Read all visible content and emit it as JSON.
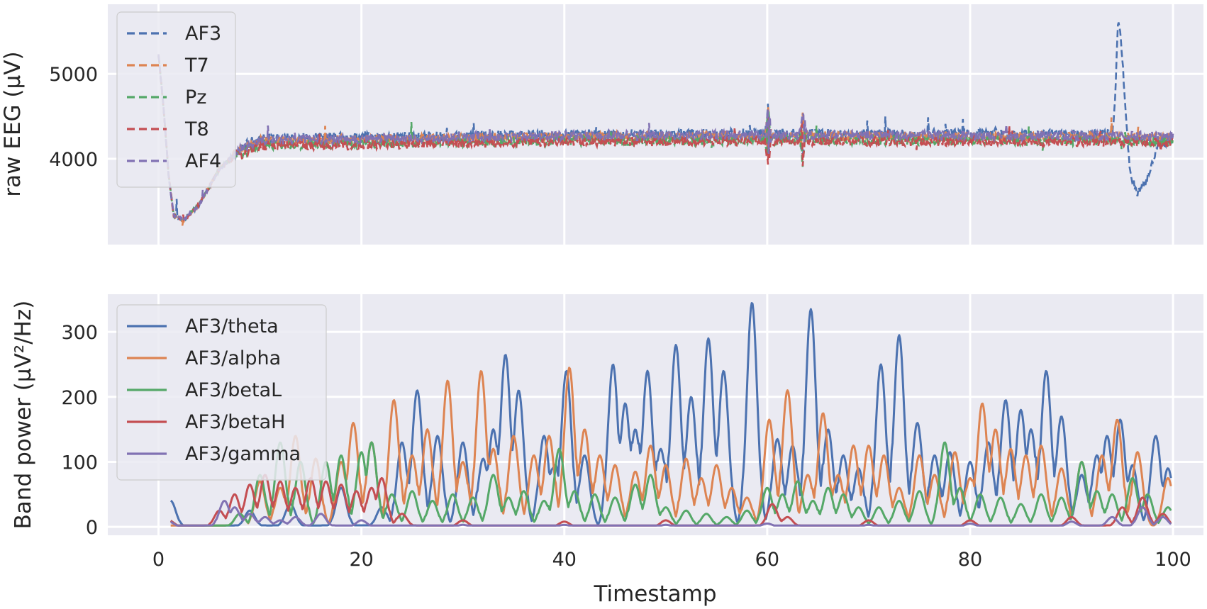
{
  "chart_data": [
    {
      "type": "line",
      "title": "",
      "xlabel": "",
      "ylabel": "raw EEG (µV)",
      "xlim": [
        -5,
        103
      ],
      "ylim": [
        2990,
        5820
      ],
      "x_ticks": [
        0,
        20,
        40,
        60,
        80,
        100
      ],
      "y_ticks": [
        4000,
        5000
      ],
      "y_tick_labels": [
        "4000",
        "5000"
      ],
      "grid": true,
      "line_style": "dashed",
      "legend_position": "top-left",
      "series": [
        {
          "name": "AF3",
          "color": "#4c72b0"
        },
        {
          "name": "T7",
          "color": "#dd8452"
        },
        {
          "name": "Pz",
          "color": "#55a868"
        },
        {
          "name": "T8",
          "color": "#c44e52"
        },
        {
          "name": "AF4",
          "color": "#8172b3"
        }
      ],
      "envelope_points": [
        {
          "x": 0,
          "y": 5220
        },
        {
          "x": 0.5,
          "y": 4600
        },
        {
          "x": 1,
          "y": 3800
        },
        {
          "x": 1.5,
          "y": 3330
        },
        {
          "x": 2.5,
          "y": 3280
        },
        {
          "x": 4,
          "y": 3460
        },
        {
          "x": 6,
          "y": 3880
        },
        {
          "x": 8,
          "y": 4100
        },
        {
          "x": 10,
          "y": 4200
        },
        {
          "x": 40,
          "y": 4250
        },
        {
          "x": 60,
          "y": 4260
        },
        {
          "x": 94,
          "y": 4250
        },
        {
          "x": 100,
          "y": 4240
        }
      ],
      "af3_event_points": [
        {
          "x": 94.0,
          "y": 4250
        },
        {
          "x": 94.3,
          "y": 4700
        },
        {
          "x": 94.6,
          "y": 5700
        },
        {
          "x": 95.0,
          "y": 5200
        },
        {
          "x": 95.4,
          "y": 4400
        },
        {
          "x": 95.8,
          "y": 3800
        },
        {
          "x": 96.5,
          "y": 3600
        },
        {
          "x": 97.3,
          "y": 3720
        },
        {
          "x": 98.0,
          "y": 3950
        },
        {
          "x": 98.5,
          "y": 4150
        },
        {
          "x": 100,
          "y": 4230
        }
      ]
    },
    {
      "type": "line",
      "title": "",
      "xlabel": "Timestamp",
      "ylabel": "Band power (µV²/Hz)",
      "xlim": [
        -5,
        103
      ],
      "ylim": [
        -13,
        358
      ],
      "x_ticks": [
        0,
        20,
        40,
        60,
        80,
        100
      ],
      "x_tick_labels": [
        "0",
        "20",
        "40",
        "60",
        "80",
        "100"
      ],
      "y_ticks": [
        0,
        100,
        200,
        300
      ],
      "y_tick_labels": [
        "0",
        "100",
        "200",
        "300"
      ],
      "grid": true,
      "line_style": "solid",
      "legend_position": "top-left",
      "series": [
        {
          "name": "AF3/theta",
          "color": "#4c72b0",
          "peaks": [
            [
              1.2,
              40
            ],
            [
              9,
              25
            ],
            [
              13,
              35
            ],
            [
              18,
              60
            ],
            [
              22,
              30
            ],
            [
              24,
              130
            ],
            [
              25.5,
              210
            ],
            [
              27.5,
              140
            ],
            [
              30,
              130
            ],
            [
              32,
              105
            ],
            [
              33,
              150
            ],
            [
              34.2,
              265
            ],
            [
              35.5,
              210
            ],
            [
              38,
              140
            ],
            [
              39,
              90
            ],
            [
              40.2,
              240
            ],
            [
              42,
              110
            ],
            [
              44.8,
              250
            ],
            [
              46,
              190
            ],
            [
              47,
              150
            ],
            [
              48.2,
              240
            ],
            [
              49.5,
              120
            ],
            [
              51,
              280
            ],
            [
              52.5,
              200
            ],
            [
              54.2,
              290
            ],
            [
              55.7,
              240
            ],
            [
              58.5,
              345
            ],
            [
              61,
              135
            ],
            [
              62.5,
              125
            ],
            [
              64.3,
              335
            ],
            [
              66,
              150
            ],
            [
              67.5,
              110
            ],
            [
              69,
              90
            ],
            [
              71.2,
              250
            ],
            [
              73,
              295
            ],
            [
              74.8,
              160
            ],
            [
              76.5,
              110
            ],
            [
              78,
              115
            ],
            [
              80,
              100
            ],
            [
              81.8,
              130
            ],
            [
              83.5,
              195
            ],
            [
              85,
              180
            ],
            [
              86,
              150
            ],
            [
              87.5,
              240
            ],
            [
              89,
              170
            ],
            [
              91,
              80
            ],
            [
              92.5,
              110
            ],
            [
              93.5,
              140
            ],
            [
              94.8,
              165
            ],
            [
              96,
              95
            ],
            [
              98.3,
              140
            ],
            [
              99.5,
              90
            ]
          ]
        },
        {
          "name": "AF3/alpha",
          "color": "#dd8452",
          "peaks": [
            [
              8,
              20
            ],
            [
              10,
              70
            ],
            [
              12,
              60
            ],
            [
              13.5,
              140
            ],
            [
              15.5,
              105
            ],
            [
              18,
              100
            ],
            [
              19.2,
              160
            ],
            [
              21,
              130
            ],
            [
              23.2,
              195
            ],
            [
              25,
              110
            ],
            [
              26.5,
              150
            ],
            [
              28.5,
              225
            ],
            [
              30,
              100
            ],
            [
              31.8,
              240
            ],
            [
              33,
              120
            ],
            [
              35,
              140
            ],
            [
              37,
              110
            ],
            [
              38.5,
              140
            ],
            [
              40.5,
              245
            ],
            [
              42,
              150
            ],
            [
              43.5,
              110
            ],
            [
              45,
              95
            ],
            [
              47,
              85
            ],
            [
              48.5,
              125
            ],
            [
              50,
              95
            ],
            [
              52,
              105
            ],
            [
              53.5,
              75
            ],
            [
              55,
              95
            ],
            [
              56.5,
              60
            ],
            [
              58,
              45
            ],
            [
              60.2,
              165
            ],
            [
              62,
              210
            ],
            [
              64,
              80
            ],
            [
              65.5,
              175
            ],
            [
              67,
              80
            ],
            [
              68.5,
              125
            ],
            [
              70,
              125
            ],
            [
              71.5,
              110
            ],
            [
              73,
              60
            ],
            [
              75,
              110
            ],
            [
              76.5,
              80
            ],
            [
              78.5,
              115
            ],
            [
              80,
              75
            ],
            [
              81.2,
              190
            ],
            [
              82.5,
              150
            ],
            [
              84,
              120
            ],
            [
              85.5,
              110
            ],
            [
              87,
              125
            ],
            [
              89,
              90
            ],
            [
              91,
              100
            ],
            [
              93,
              110
            ],
            [
              94.5,
              165
            ],
            [
              96.5,
              115
            ],
            [
              99.5,
              75
            ]
          ]
        },
        {
          "name": "AF3/betaL",
          "color": "#55a868",
          "peaks": [
            [
              1,
              10
            ],
            [
              8,
              20
            ],
            [
              10,
              80
            ],
            [
              12,
              130
            ],
            [
              14,
              100
            ],
            [
              16.5,
              100
            ],
            [
              18,
              110
            ],
            [
              20,
              115
            ],
            [
              21,
              130
            ],
            [
              23,
              50
            ],
            [
              25,
              55
            ],
            [
              27,
              40
            ],
            [
              29,
              50
            ],
            [
              31,
              45
            ],
            [
              33,
              80
            ],
            [
              34.5,
              45
            ],
            [
              36,
              55
            ],
            [
              38,
              40
            ],
            [
              39.5,
              120
            ],
            [
              41,
              55
            ],
            [
              43,
              50
            ],
            [
              45,
              45
            ],
            [
              47,
              65
            ],
            [
              48.5,
              80
            ],
            [
              50,
              30
            ],
            [
              52,
              25
            ],
            [
              54,
              20
            ],
            [
              56,
              15
            ],
            [
              58,
              25
            ],
            [
              60,
              60
            ],
            [
              61.5,
              50
            ],
            [
              63,
              70
            ],
            [
              64.5,
              40
            ],
            [
              66,
              60
            ],
            [
              67.5,
              50
            ],
            [
              69,
              30
            ],
            [
              71,
              30
            ],
            [
              73,
              40
            ],
            [
              75,
              55
            ],
            [
              77.5,
              130
            ],
            [
              79,
              60
            ],
            [
              81,
              50
            ],
            [
              83,
              45
            ],
            [
              85,
              35
            ],
            [
              87,
              50
            ],
            [
              89,
              45
            ],
            [
              91,
              100
            ],
            [
              92.5,
              55
            ],
            [
              94,
              50
            ],
            [
              96,
              75
            ],
            [
              97.5,
              50
            ],
            [
              99.5,
              30
            ]
          ]
        },
        {
          "name": "AF3/betaH",
          "color": "#c44e52",
          "peaks": [
            [
              1,
              10
            ],
            [
              6,
              25
            ],
            [
              7.5,
              50
            ],
            [
              9,
              65
            ],
            [
              10.5,
              80
            ],
            [
              12,
              70
            ],
            [
              13.5,
              60
            ],
            [
              15,
              75
            ],
            [
              16.5,
              70
            ],
            [
              18,
              65
            ],
            [
              19.5,
              55
            ],
            [
              21,
              60
            ],
            [
              22,
              75
            ],
            [
              24,
              20
            ],
            [
              30,
              10
            ],
            [
              40,
              8
            ],
            [
              50,
              10
            ],
            [
              60.5,
              35
            ],
            [
              62,
              15
            ],
            [
              70,
              10
            ],
            [
              80,
              10
            ],
            [
              90,
              15
            ],
            [
              95,
              30
            ],
            [
              97,
              45
            ],
            [
              99,
              20
            ]
          ]
        },
        {
          "name": "AF3/gamma",
          "color": "#8172b3",
          "peaks": [
            [
              1,
              8
            ],
            [
              6.5,
              40
            ],
            [
              7.5,
              30
            ],
            [
              9,
              20
            ],
            [
              10.5,
              15
            ],
            [
              12,
              10
            ],
            [
              13.5,
              15
            ],
            [
              16,
              20
            ],
            [
              20,
              10
            ],
            [
              30,
              3
            ],
            [
              40,
              3
            ],
            [
              50,
              3
            ],
            [
              60,
              5
            ],
            [
              70,
              3
            ],
            [
              80,
              5
            ],
            [
              90,
              8
            ],
            [
              94,
              15
            ],
            [
              97,
              30
            ],
            [
              99,
              15
            ]
          ]
        }
      ]
    }
  ]
}
